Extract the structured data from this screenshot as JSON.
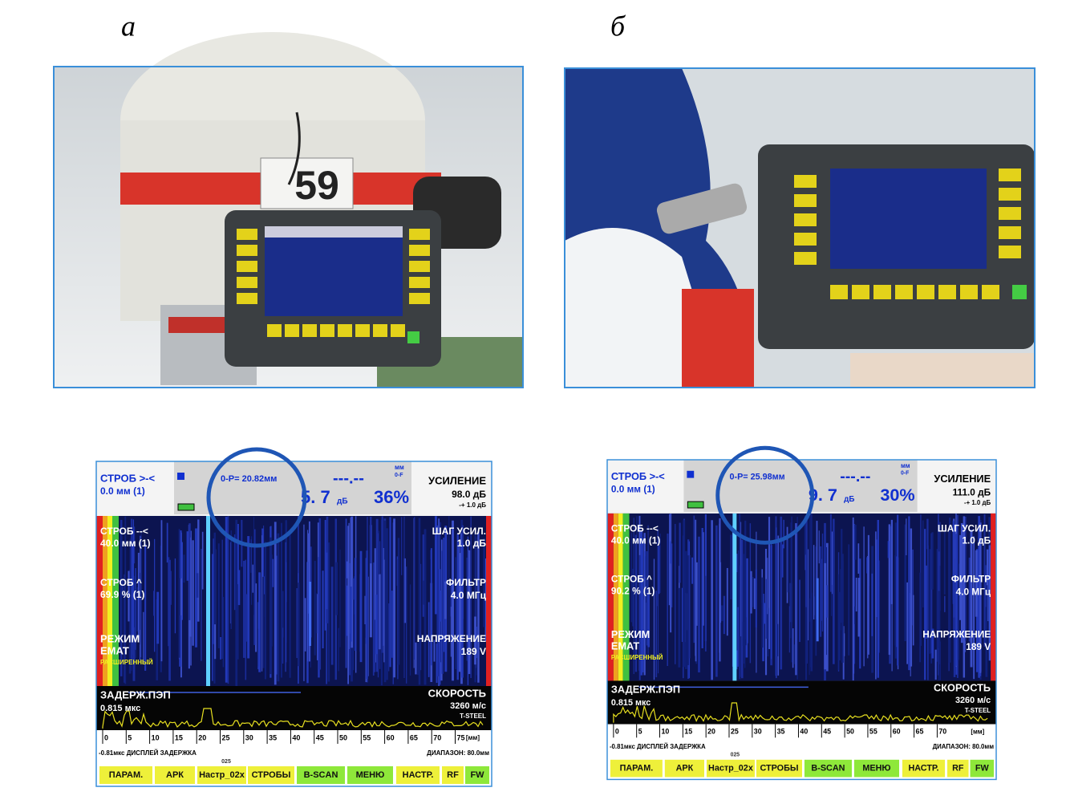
{
  "panel_labels": [
    "а",
    "б"
  ],
  "photo_a": {
    "sign": "59"
  },
  "screens": [
    {
      "gate_top": "СТРОБ >-<",
      "gate_top_value": "0.0 мм (1)",
      "op": "0-P= 20.82мм",
      "dashes": "---.--",
      "unit": "мм",
      "unit2": "0-F",
      "gain_value": "5. 7",
      "gain_unit": "дБ",
      "percent": "36%",
      "gain_label": "УСИЛЕНИЕ",
      "gain": "98.0 дБ",
      "gain_step_note": "-+ 1.0 дБ",
      "step_label": "ШАГ УСИЛ.",
      "step": "1.0 дБ",
      "filter_label": "ФИЛЬТР",
      "filter": "4.0 МГц",
      "voltage_label": "НАПРЯЖЕНИЕ",
      "voltage": "189 V",
      "velocity_label": "СКОРОСТЬ",
      "velocity": "3260 м/с",
      "material": "T-STEEL",
      "gate1_label": "СТРОБ --<",
      "gate1": "40.0 мм (1)",
      "gate2_label": "СТРОБ ^",
      "gate2": "69.9 % (1)",
      "mode_label": "РЕЖИМ",
      "mode": "EMAT",
      "mode_sub": "РАСШИРЕННЫЙ",
      "delay_label": "ЗАДЕРЖ.ПЭП",
      "delay": "0.815 мкс",
      "ticks": [
        0,
        5,
        10,
        15,
        20,
        25,
        30,
        35,
        40,
        45,
        50,
        55,
        60,
        65,
        70,
        75
      ],
      "tick_unit": "[мм]",
      "delay_display": "-0.81мкс ДИСПЛЕЙ ЗАДЕРЖКА",
      "range": "ДИАПАЗОН: 80.0мм",
      "counter": "025",
      "buttons": [
        "ПАРАМ.",
        "АРК",
        "Настр_02х",
        "СТРОБЫ",
        "B-SCAN",
        "МЕНЮ",
        "НАСТР.",
        "RF",
        "FW"
      ]
    },
    {
      "gate_top": "СТРОБ >-<",
      "gate_top_value": "0.0 мм (1)",
      "op": "0-P= 25.98мм",
      "dashes": "---.--",
      "unit": "мм",
      "unit2": "0-F",
      "gain_value": "9. 7",
      "gain_unit": "дБ",
      "percent": "30%",
      "gain_label": "УСИЛЕНИЕ",
      "gain": "111.0 дБ",
      "gain_step_note": "-+ 1.0 дБ",
      "step_label": "ШАГ УСИЛ.",
      "step": "1.0 дБ",
      "filter_label": "ФИЛЬТР",
      "filter": "4.0 МГц",
      "voltage_label": "НАПРЯЖЕНИЕ",
      "voltage": "189 V",
      "velocity_label": "СКОРОСТЬ",
      "velocity": "3260 м/с",
      "material": "T-STEEL",
      "gate1_label": "СТРОБ --<",
      "gate1": "40.0 мм (1)",
      "gate2_label": "СТРОБ ^",
      "gate2": "90.2 % (1)",
      "mode_label": "РЕЖИМ",
      "mode": "EMAT",
      "mode_sub": "РАСШИРЕННЫЙ",
      "delay_label": "ЗАДЕРЖ.ПЭП",
      "delay": "0.815 мкс",
      "ticks": [
        0,
        5,
        10,
        15,
        20,
        25,
        30,
        35,
        40,
        45,
        50,
        55,
        60,
        65,
        70
      ],
      "tick_unit": "[мм]",
      "delay_display": "-0.81мкс ДИСПЛЕЙ ЗАДЕРЖКА",
      "range": "ДИАПАЗОН: 80.0мм",
      "counter": "025",
      "buttons": [
        "ПАРАМ.",
        "АРК",
        "Настр_02х",
        "СТРОБЫ",
        "B-SCAN",
        "МЕНЮ",
        "НАСТР.",
        "RF",
        "FW"
      ]
    }
  ]
}
